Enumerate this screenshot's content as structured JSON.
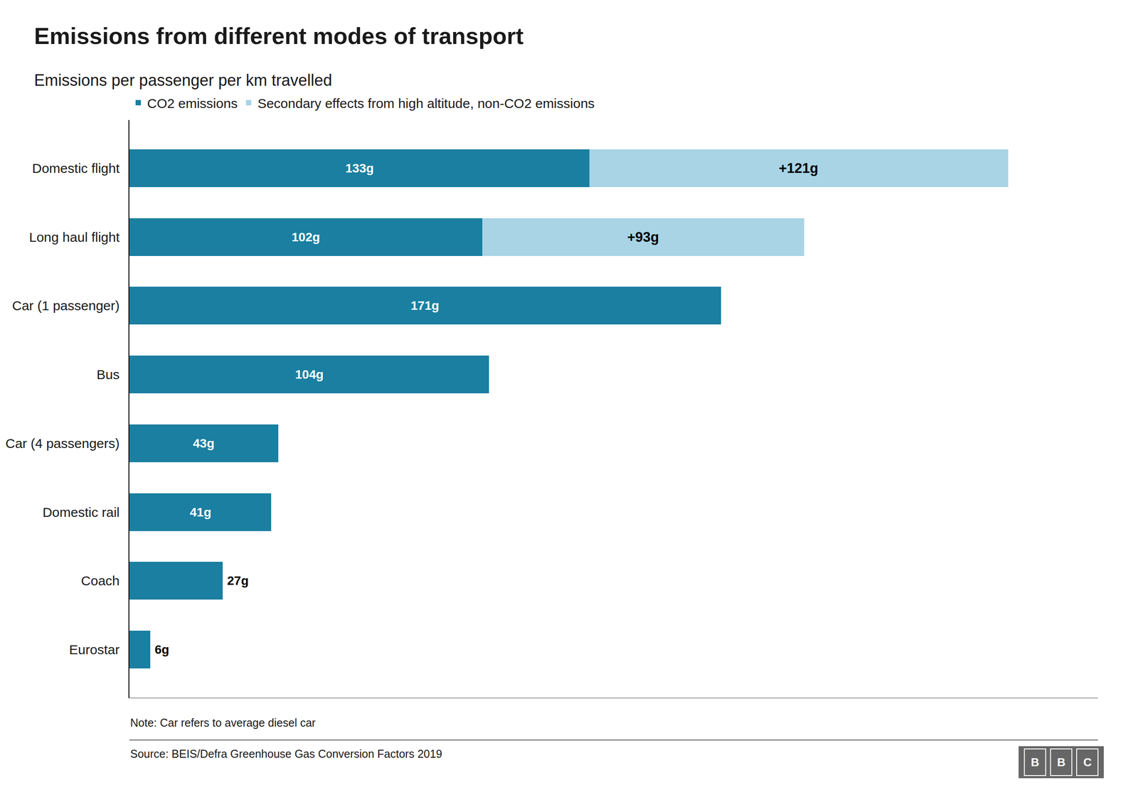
{
  "chart_data": {
    "type": "bar",
    "orientation": "horizontal",
    "stacked": true,
    "title": "Emissions from different modes of transport",
    "subtitle": "Emissions per passenger per km travelled",
    "categories": [
      "Domestic flight",
      "Long haul flight",
      "Car (1 passenger)",
      "Bus",
      "Car (4 passengers)",
      "Domestic rail",
      "Coach",
      "Eurostar"
    ],
    "series": [
      {
        "name": "CO2 emissions",
        "color": "#1a7fa0",
        "values": [
          133,
          102,
          171,
          104,
          43,
          41,
          27,
          6
        ],
        "value_labels": [
          "133g",
          "102g",
          "171g",
          "104g",
          "43g",
          "41g",
          "27g",
          "6g"
        ]
      },
      {
        "name": "Secondary effects from high altitude, non-CO2 emissions",
        "color": "#a8d4e6",
        "values": [
          121,
          93,
          0,
          0,
          0,
          0,
          0,
          0
        ],
        "value_labels": [
          "+121g",
          "+93g",
          null,
          null,
          null,
          null,
          null,
          null
        ]
      }
    ],
    "xlim": [
      0,
      280
    ],
    "xticks": [],
    "tick_labels": "y",
    "data_labels": true,
    "grid": false,
    "legend": "top",
    "note": "Note: Car refers to average diesel car",
    "source": "Source: BEIS/Defra Greenhouse Gas Conversion Factors 2019",
    "logo": "BBC"
  }
}
